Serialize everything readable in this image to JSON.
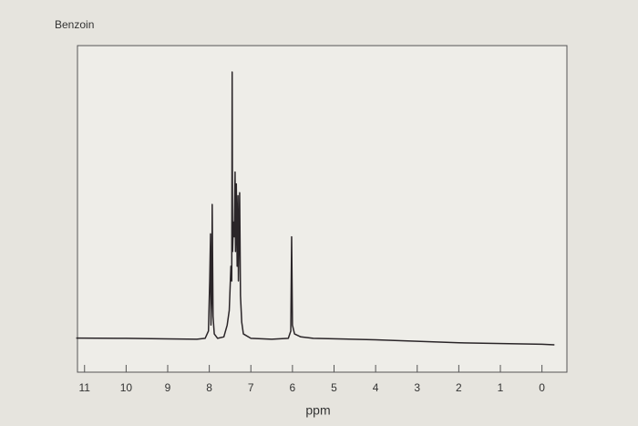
{
  "chart_data": {
    "type": "line",
    "title": "Benzoin",
    "x_label": "ppm",
    "x": [
      11.2,
      10,
      9,
      8.3,
      8.1,
      8.02,
      7.99,
      7.97,
      7.96,
      7.94,
      7.93,
      7.91,
      7.88,
      7.8,
      7.65,
      7.57,
      7.52,
      7.48,
      7.46,
      7.45,
      7.44,
      7.42,
      7.4,
      7.38,
      7.37,
      7.35,
      7.33,
      7.31,
      7.3,
      7.27,
      7.25,
      7.22,
      7.18,
      7.0,
      6.5,
      6.1,
      6.04,
      6.02,
      6.0,
      5.95,
      5.8,
      5.5,
      4,
      2,
      0,
      -0.3
    ],
    "values": [
      0.6,
      0.5,
      0.3,
      0.2,
      0.5,
      3,
      20,
      36,
      5,
      15,
      46,
      8,
      2,
      0.5,
      1,
      5,
      10,
      25,
      20,
      91,
      30,
      40,
      35,
      57,
      30,
      53,
      25,
      49,
      20,
      50,
      15,
      6,
      2,
      0.5,
      0.2,
      0.5,
      3,
      35,
      5,
      2,
      1,
      0.5,
      0,
      -1,
      -1.5,
      -1.7
    ],
    "color": "#2a2528",
    "xlim": [
      11.17,
      -0.6
    ],
    "ylim": [
      -11,
      100
    ],
    "xticks": [
      11,
      10,
      9,
      8,
      7,
      6,
      5,
      4,
      3,
      2,
      1,
      0
    ]
  }
}
